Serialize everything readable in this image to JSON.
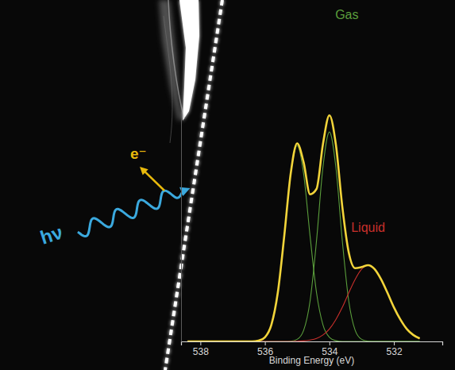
{
  "chart_data": {
    "type": "line",
    "x": [
      538.4,
      538.2,
      538,
      537.8,
      537.6,
      537.4,
      537.2,
      537,
      536.8,
      536.6,
      536.4,
      536.2,
      536,
      535.8,
      535.6,
      535.4,
      535.2,
      535,
      534.8,
      534.6,
      534.4,
      534.2,
      534,
      533.8,
      533.6,
      533.4,
      533.2,
      533,
      532.8,
      532.6,
      532.4,
      532.2,
      532,
      531.8,
      531.6,
      531.4,
      531.2
    ],
    "series": [
      {
        "color": "#5b9e3c",
        "values": [
          0,
          0,
          0,
          0,
          0,
          0,
          0,
          0,
          0,
          0,
          0,
          0.3,
          1.8,
          7.2,
          21.2,
          45.8,
          72.8,
          85,
          72.8,
          45.8,
          21.2,
          7.2,
          1.8,
          0.3,
          0,
          0,
          0,
          0,
          0,
          0,
          0,
          0,
          0,
          0,
          0,
          0,
          0
        ]
      },
      {
        "color": "#5b9e3c",
        "values": [
          0,
          0,
          0,
          0,
          0,
          0,
          0,
          0,
          0,
          0,
          0,
          0,
          0,
          0,
          0,
          0,
          0.1,
          0.9,
          4.8,
          17.5,
          43.7,
          75.7,
          91,
          75.7,
          43.7,
          17.5,
          4.8,
          0.9,
          0.1,
          0,
          0,
          0,
          0,
          0,
          0,
          0,
          0
        ]
      },
      {
        "color": "#c9302c",
        "values": [
          0,
          0,
          0,
          0,
          0,
          0,
          0,
          0,
          0,
          0,
          0,
          0,
          0,
          0,
          0,
          0,
          0,
          0.1,
          0.2,
          0.6,
          1.3,
          2.8,
          5.4,
          9.5,
          14.8,
          21.1,
          27,
          31.4,
          33,
          31.4,
          27,
          21.1,
          14.8,
          9.5,
          5.4,
          2.8,
          1.3
        ]
      },
      {
        "color": "#f2d43a",
        "values": [
          0,
          0,
          0,
          0,
          0,
          0,
          0,
          0,
          0,
          0,
          0,
          0.3,
          1.8,
          7.2,
          21.2,
          45.8,
          72.9,
          86,
          77.8,
          63.9,
          66.2,
          85.7,
          98.2,
          85.5,
          58.5,
          38.6,
          31.8,
          32.3,
          33.1,
          31.4,
          27,
          21.1,
          14.8,
          9.5,
          5.4,
          2.8,
          1.3
        ]
      }
    ],
    "xlim": [
      538.6,
      530.5
    ],
    "xticks": [
      538,
      536,
      534,
      532
    ],
    "ylim": [
      0,
      100
    ],
    "xlabel": "Binding Energy (eV)",
    "tick_labels": "x",
    "grid": false,
    "annotations": [
      {
        "text": "Gas",
        "color": "#5b9e3c"
      },
      {
        "text": "Liquid",
        "color": "#c9302c"
      },
      {
        "text": "hν",
        "color": "#3ba9de"
      },
      {
        "text": "e⁻",
        "color": "#e8b90c"
      }
    ]
  }
}
